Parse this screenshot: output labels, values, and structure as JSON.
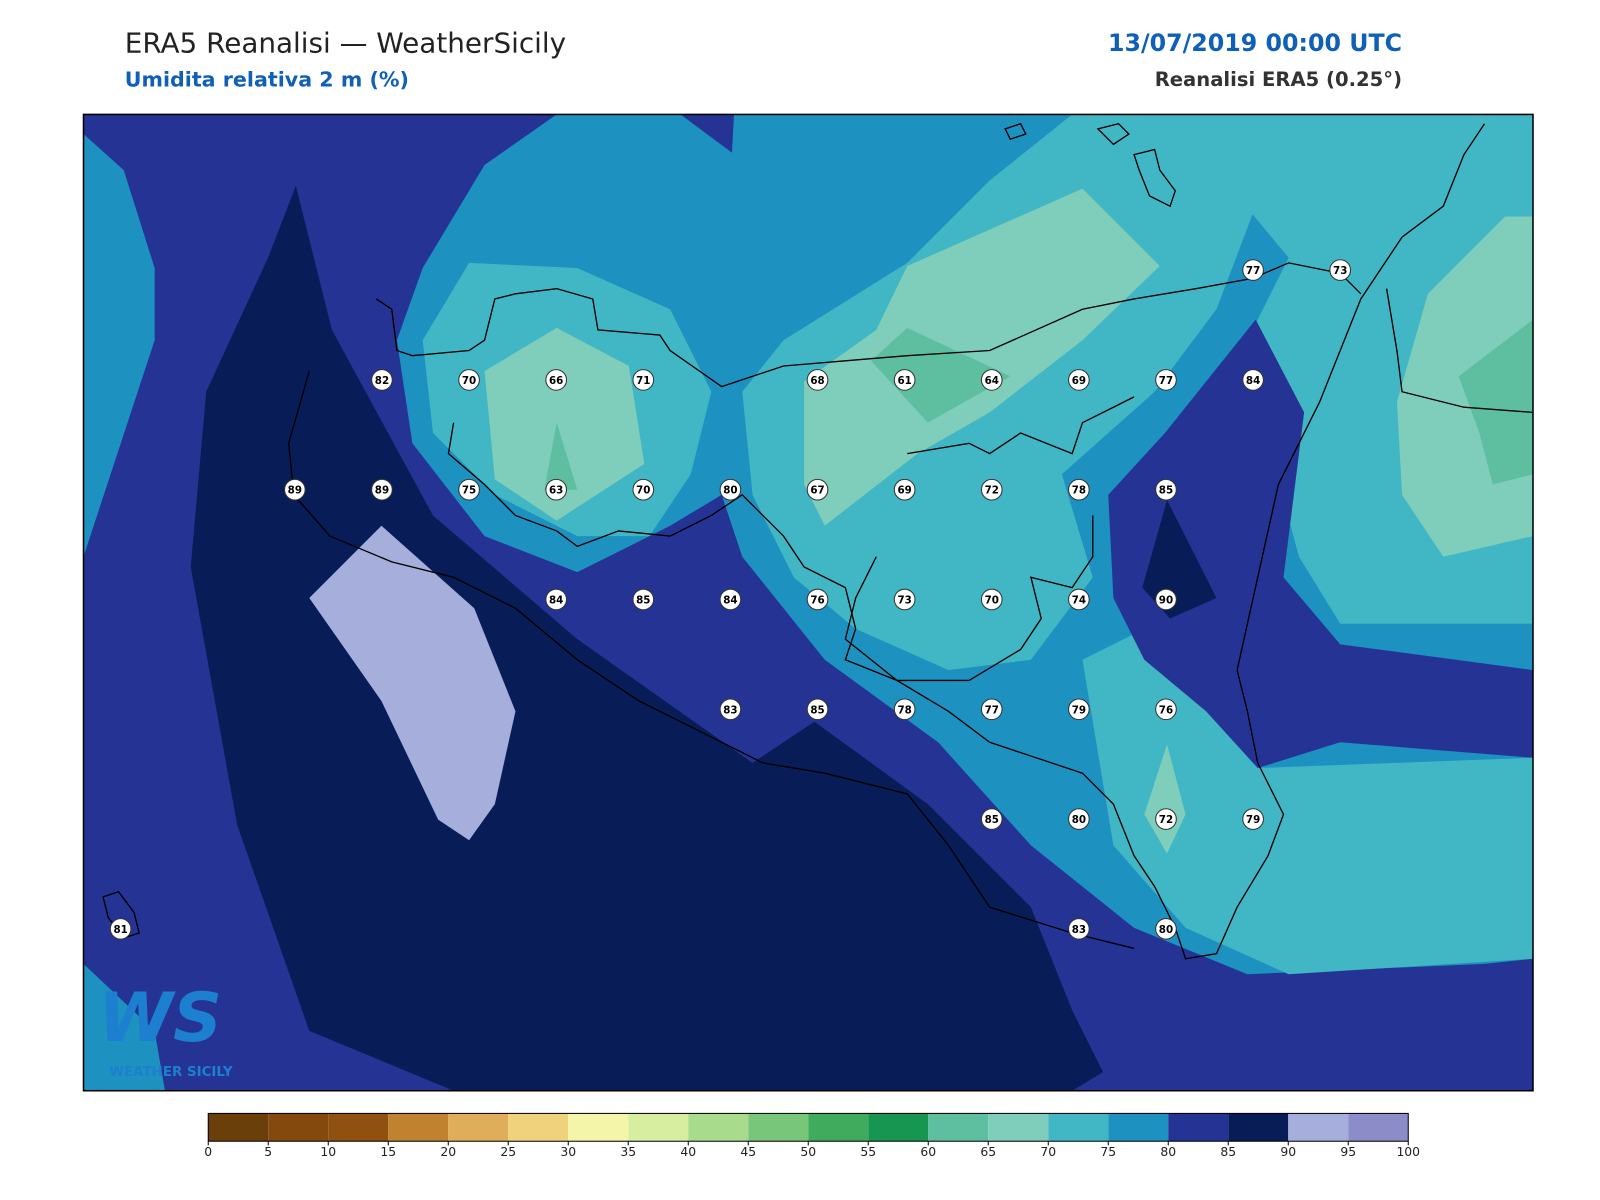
{
  "header": {
    "title": "ERA5 Reanalisi — WeatherSicily",
    "subtitle": "Umidita relativa 2 m (%)",
    "datetime": "13/07/2019 00:00 UTC",
    "source": "Reanalisi ERA5 (0.25°)"
  },
  "stations": [
    [
      null,
      null,
      null,
      null,
      null,
      null,
      null,
      null,
      null,
      null,
      null,
      null,
      null,
      77,
      73
    ],
    [
      null,
      null,
      null,
      82,
      70,
      66,
      71,
      null,
      68,
      61,
      64,
      69,
      77,
      84,
      null
    ],
    [
      null,
      null,
      89,
      89,
      75,
      63,
      70,
      80,
      67,
      69,
      72,
      78,
      85,
      null,
      null
    ],
    [
      null,
      null,
      null,
      null,
      null,
      84,
      85,
      84,
      76,
      73,
      70,
      74,
      90,
      null,
      null
    ],
    [
      null,
      null,
      null,
      null,
      null,
      null,
      null,
      83,
      85,
      78,
      77,
      79,
      76,
      null,
      null
    ],
    [
      null,
      null,
      null,
      null,
      null,
      null,
      null,
      null,
      null,
      null,
      85,
      80,
      72,
      79,
      null
    ],
    [
      81,
      null,
      null,
      null,
      null,
      null,
      null,
      null,
      null,
      null,
      null,
      83,
      80,
      null,
      null
    ]
  ],
  "colorbar": {
    "ticks": [
      0,
      5,
      10,
      15,
      20,
      25,
      30,
      35,
      40,
      45,
      50,
      55,
      60,
      65,
      70,
      75,
      80,
      85,
      90,
      95,
      100
    ],
    "colors": [
      "#6b3f0a",
      "#84490c",
      "#8f5010",
      "#c0822e",
      "#dfae5a",
      "#f0d27c",
      "#f5f5aa",
      "#d7eea0",
      "#a8dc8c",
      "#78c679",
      "#41ab5d",
      "#179651",
      "#5ebea0",
      "#7fcdbb",
      "#41b6c4",
      "#1d91c0",
      "#253494",
      "#081d58",
      "#a6afdc",
      "#8c8cc8"
    ]
  },
  "logo": {
    "mark": "WS",
    "text": "WEATHER SICILY"
  }
}
